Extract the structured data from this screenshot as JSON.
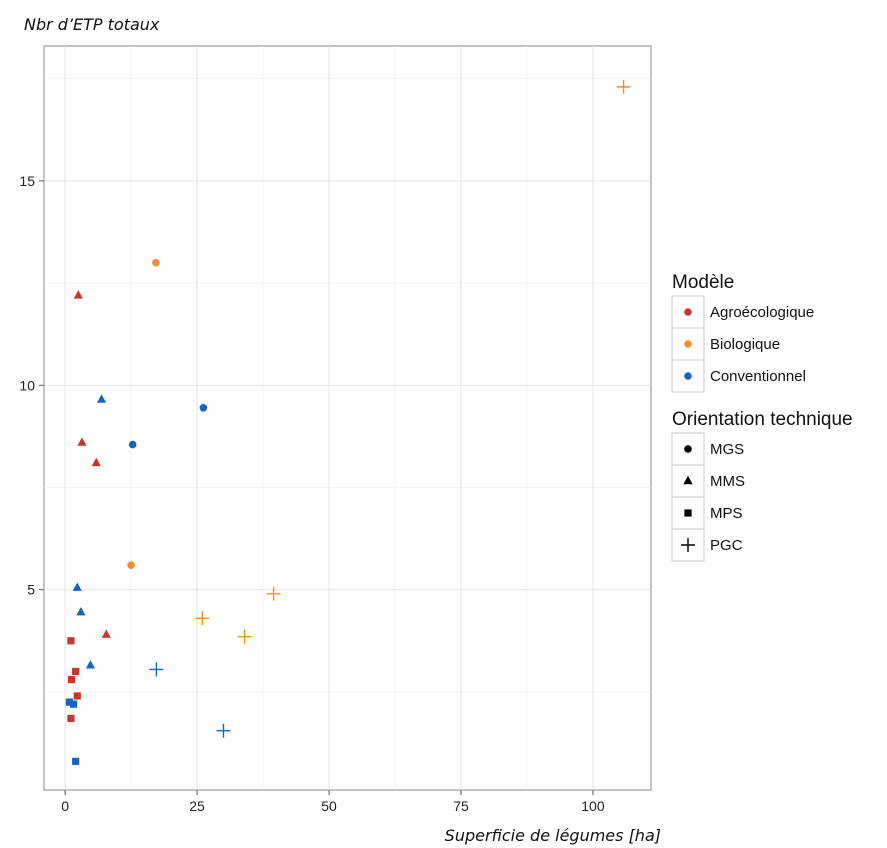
{
  "chart_data": {
    "type": "scatter",
    "title": "",
    "xlabel": "Superficie de légumes [ha]",
    "ylabel": "Nbr d’ETP totaux",
    "xlim": [
      -4,
      111
    ],
    "ylim": [
      0.1,
      18.3
    ],
    "xticks": [
      0,
      25,
      50,
      75,
      100
    ],
    "yticks": [
      5,
      10,
      15
    ],
    "grid": true,
    "colors": {
      "Agroécologique": "#c8372d",
      "Biologique": "#f28e30",
      "Conventionnel": "#1565c0"
    },
    "legends": [
      {
        "title": "Modèle",
        "items": [
          {
            "label": "Agroécologique",
            "shape": "circle",
            "color": "#c8372d"
          },
          {
            "label": "Biologique",
            "shape": "circle",
            "color": "#f28e30"
          },
          {
            "label": "Conventionnel",
            "shape": "circle",
            "color": "#1565c0"
          }
        ]
      },
      {
        "title": "Orientation technique",
        "items": [
          {
            "label": "MGS",
            "shape": "circle",
            "color": "#000000"
          },
          {
            "label": "MMS",
            "shape": "triangle",
            "color": "#000000"
          },
          {
            "label": "MPS",
            "shape": "square",
            "color": "#000000"
          },
          {
            "label": "PGC",
            "shape": "plus",
            "color": "#000000"
          }
        ]
      }
    ],
    "points": [
      {
        "x": 105.8,
        "y": 17.3,
        "modele": "Biologique",
        "orientation": "PGC"
      },
      {
        "x": 17.2,
        "y": 13.0,
        "modele": "Biologique",
        "orientation": "MGS"
      },
      {
        "x": 12.5,
        "y": 5.6,
        "modele": "Biologique",
        "orientation": "MGS"
      },
      {
        "x": 26.0,
        "y": 4.3,
        "modele": "Biologique",
        "orientation": "PGC"
      },
      {
        "x": 39.5,
        "y": 4.9,
        "modele": "Biologique",
        "orientation": "PGC"
      },
      {
        "x": 34.0,
        "y": 3.85,
        "modele": "Biologique",
        "orientation": "PGC"
      },
      {
        "x": 2.5,
        "y": 12.2,
        "modele": "Agroécologique",
        "orientation": "MMS"
      },
      {
        "x": 3.2,
        "y": 8.6,
        "modele": "Agroécologique",
        "orientation": "MMS"
      },
      {
        "x": 5.9,
        "y": 8.1,
        "modele": "Agroécologique",
        "orientation": "MMS"
      },
      {
        "x": 7.8,
        "y": 3.9,
        "modele": "Agroécologique",
        "orientation": "MMS"
      },
      {
        "x": 1.1,
        "y": 3.75,
        "modele": "Agroécologique",
        "orientation": "MPS"
      },
      {
        "x": 2.0,
        "y": 3.0,
        "modele": "Agroécologique",
        "orientation": "MPS"
      },
      {
        "x": 1.2,
        "y": 2.8,
        "modele": "Agroécologique",
        "orientation": "MPS"
      },
      {
        "x": 2.3,
        "y": 2.4,
        "modele": "Agroécologique",
        "orientation": "MPS"
      },
      {
        "x": 1.1,
        "y": 1.85,
        "modele": "Agroécologique",
        "orientation": "MPS"
      },
      {
        "x": 6.9,
        "y": 9.65,
        "modele": "Conventionnel",
        "orientation": "MMS"
      },
      {
        "x": 26.2,
        "y": 9.45,
        "modele": "Conventionnel",
        "orientation": "MGS"
      },
      {
        "x": 12.8,
        "y": 8.55,
        "modele": "Conventionnel",
        "orientation": "MGS"
      },
      {
        "x": 2.3,
        "y": 5.05,
        "modele": "Conventionnel",
        "orientation": "MMS"
      },
      {
        "x": 3.0,
        "y": 4.45,
        "modele": "Conventionnel",
        "orientation": "MMS"
      },
      {
        "x": 4.8,
        "y": 3.15,
        "modele": "Conventionnel",
        "orientation": "MMS"
      },
      {
        "x": 17.3,
        "y": 3.05,
        "modele": "Conventionnel",
        "orientation": "PGC"
      },
      {
        "x": 30.0,
        "y": 1.55,
        "modele": "Conventionnel",
        "orientation": "PGC"
      },
      {
        "x": 0.8,
        "y": 2.25,
        "modele": "Conventionnel",
        "orientation": "MPS"
      },
      {
        "x": 1.6,
        "y": 2.2,
        "modele": "Conventionnel",
        "orientation": "MPS"
      },
      {
        "x": 2.0,
        "y": 0.8,
        "modele": "Conventionnel",
        "orientation": "MPS"
      }
    ]
  }
}
